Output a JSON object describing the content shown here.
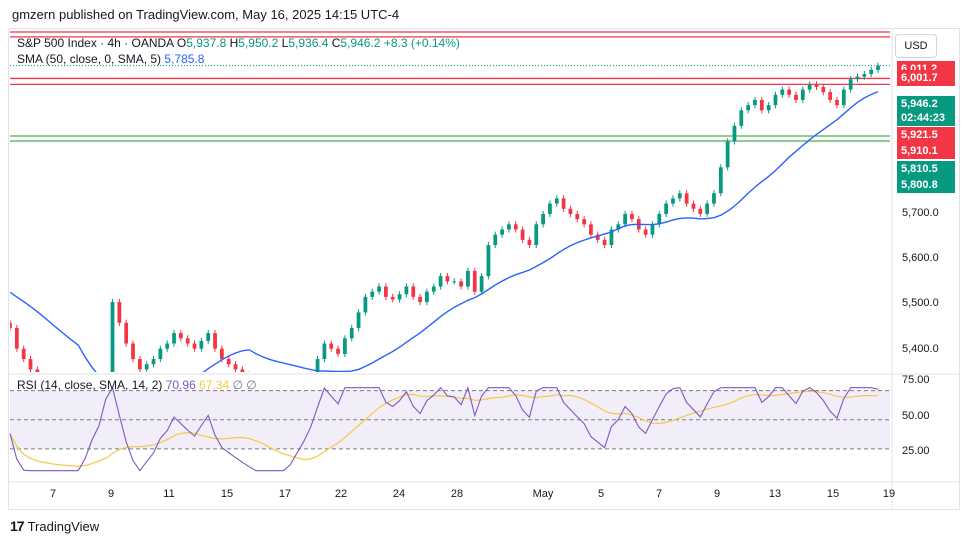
{
  "header": {
    "published_text": "gmzern published on TradingView.com, May 16, 2025 14:15 UTC-4"
  },
  "legend": {
    "symbol": "S&P 500 Index · 4h · OANDA",
    "o_label": "O",
    "o_value": "5,937.8",
    "h_label": "H",
    "h_value": "5,950.2",
    "l_label": "L",
    "l_value": "5,936.4",
    "c_label": "C",
    "c_value": "5,946.2",
    "change": "+8.3 (+0.14%)",
    "sma_label": "SMA (50, close, 0, SMA, 5)",
    "sma_value": "5,785.8",
    "rsi_label": "RSI (14, close, SMA, 14, 2)",
    "rsi_value": "70.96",
    "rsi_ma_value": "67.34",
    "rsi_extra1": "∅",
    "rsi_extra2": "∅"
  },
  "currency_button": "USD",
  "price_tags": [
    {
      "text": "6,011.2",
      "color": "#f23645"
    },
    {
      "text": "6,001.7",
      "color": "#f23645"
    },
    {
      "text": "5,946.2",
      "color": "#089981"
    },
    {
      "text": "02:44:23",
      "color": "#089981"
    },
    {
      "text": "5,921.5",
      "color": "#f23645"
    },
    {
      "text": "5,910.1",
      "color": "#f23645"
    },
    {
      "text": "5,810.5",
      "color": "#089981"
    },
    {
      "text": "5,800.8",
      "color": "#089981"
    }
  ],
  "price_axis": [
    "5,700.0",
    "5,600.0",
    "5,500.0",
    "5,400.0"
  ],
  "rsi_axis": [
    "75.00",
    "50.00",
    "25.00"
  ],
  "x_axis": [
    "7",
    "9",
    "11",
    "15",
    "17",
    "22",
    "24",
    "28",
    "May",
    "5",
    "7",
    "9",
    "13",
    "15",
    "19"
  ],
  "footer": {
    "brand": "TradingView",
    "logo_mark": "17"
  },
  "colors": {
    "up": "#089981",
    "down": "#f23645",
    "sma": "#2962ff",
    "rsi": "#7e57c2",
    "rsi_ma": "#f7c744",
    "resistance": "#f23645",
    "support": "#4caf50"
  },
  "chart_data": {
    "type": "candlestick",
    "symbol": "S&P 500 Index",
    "interval": "4h",
    "x_labels": [
      "7",
      "9",
      "11",
      "15",
      "17",
      "22",
      "24",
      "28",
      "May",
      "5",
      "7",
      "9",
      "13",
      "15",
      "19"
    ],
    "y_range": [
      5355,
      6015
    ],
    "closes": [
      5440,
      5400,
      5380,
      5360,
      5330,
      5300,
      5270,
      5250,
      5230,
      5220,
      5200,
      5215,
      5240,
      5260,
      5300,
      5490,
      5450,
      5410,
      5380,
      5360,
      5370,
      5380,
      5400,
      5410,
      5430,
      5420,
      5410,
      5400,
      5415,
      5430,
      5400,
      5380,
      5370,
      5360,
      5350,
      5340,
      5330,
      5320,
      5310,
      5300,
      5295,
      5300,
      5315,
      5330,
      5350,
      5380,
      5410,
      5400,
      5390,
      5420,
      5440,
      5470,
      5500,
      5510,
      5520,
      5500,
      5495,
      5505,
      5520,
      5500,
      5490,
      5510,
      5520,
      5540,
      5530,
      5530,
      5520,
      5550,
      5510,
      5540,
      5600,
      5620,
      5630,
      5640,
      5630,
      5610,
      5600,
      5640,
      5660,
      5680,
      5690,
      5670,
      5660,
      5650,
      5640,
      5620,
      5610,
      5600,
      5630,
      5640,
      5660,
      5650,
      5630,
      5620,
      5640,
      5660,
      5680,
      5690,
      5700,
      5680,
      5670,
      5660,
      5680,
      5700,
      5750,
      5800,
      5830,
      5860,
      5870,
      5880,
      5860,
      5870,
      5890,
      5900,
      5890,
      5880,
      5900,
      5910,
      5905,
      5895,
      5880,
      5870,
      5900,
      5920,
      5925,
      5930,
      5938,
      5946.2
    ],
    "sma_50": {
      "last": 5785.8
    },
    "horizontal_levels": [
      {
        "value": 6011.2,
        "role": "resistance"
      },
      {
        "value": 6001.7,
        "role": "resistance"
      },
      {
        "value": 5921.5,
        "role": "resistance"
      },
      {
        "value": 5910.1,
        "role": "resistance"
      },
      {
        "value": 5810.5,
        "role": "support"
      },
      {
        "value": 5800.8,
        "role": "support"
      }
    ],
    "rsi": {
      "length": 14,
      "last": 70.96,
      "ma_last": 67.34,
      "levels": [
        70,
        50,
        30
      ],
      "y_range": [
        10,
        80
      ]
    }
  }
}
